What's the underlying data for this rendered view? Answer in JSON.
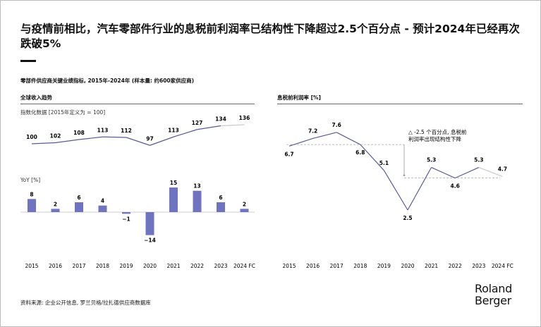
{
  "title": "与疫情前相比，汽车零部件行业的息税前利润率已结构性下降超过2.5个百分点 - 预计2024年已经再次跌破5%",
  "subtitle": "零部件供应商关键业绩指标, 2015年-2024年 (样本量: 约600家供应商)",
  "source": "资料来源: 企业公开信息, 罗兰贝格/拉扎德供应商数据库",
  "logo": {
    "line1": "Roland",
    "line2": "Berger"
  },
  "colors": {
    "series": "#6f74c0",
    "line": "#5a5a9a",
    "forecast": "#c8c8d0",
    "dash": "#aaaaaa"
  },
  "chart_data": [
    {
      "type": "line",
      "title": "全球收入趋势",
      "ylabel": "指数化数据 [2015年定义为 = 100]",
      "categories": [
        "2015",
        "2016",
        "2017",
        "2018",
        "2019",
        "2020",
        "2021",
        "2022",
        "2023",
        "2024 FC"
      ],
      "values": [
        100,
        102,
        108,
        113,
        112,
        97,
        113,
        127,
        134,
        136
      ]
    },
    {
      "type": "bar",
      "ylabel": "YoY [%]",
      "categories": [
        "2015",
        "2016",
        "2017",
        "2018",
        "2019",
        "2020",
        "2021",
        "2022",
        "2023",
        "2024 FC"
      ],
      "values": [
        8,
        2,
        6,
        4,
        -1,
        -14,
        15,
        13,
        6,
        2
      ]
    },
    {
      "type": "line",
      "title": "息税前利润率 [%]",
      "categories": [
        "2015",
        "2016",
        "2017",
        "2018",
        "2019",
        "2020",
        "2021",
        "2022",
        "2023",
        "2024 FC"
      ],
      "values": [
        6.7,
        7.2,
        7.6,
        6.8,
        5.1,
        2.5,
        5.3,
        4.6,
        5.3,
        4.7
      ],
      "reference_lines": [
        6.8,
        4.6
      ],
      "annotation": [
        "△ -2.5 个百分点, 息税前",
        "利润率出现结构性下降"
      ]
    }
  ]
}
